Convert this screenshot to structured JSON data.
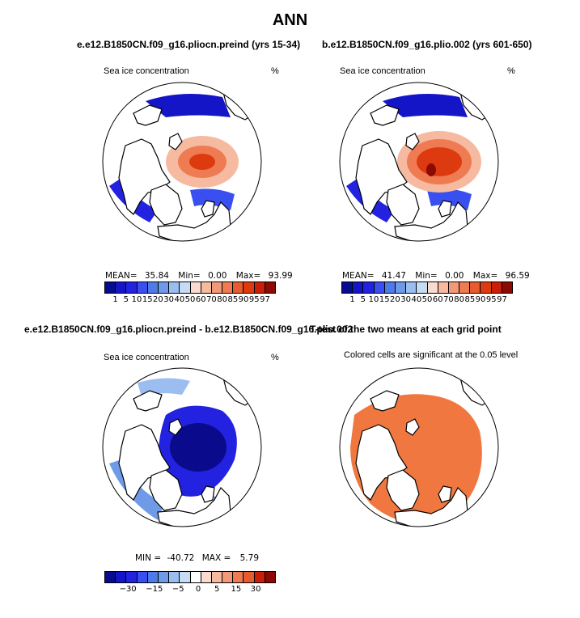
{
  "title": "ANN",
  "chart_data": [
    {
      "type": "heatmap",
      "projection": "north polar stereographic",
      "title": "e.e12.B1850CN.f09_g16.pliocn.preind (yrs 15-34)",
      "subtitle_left": "Sea ice concentration",
      "subtitle_right": "%",
      "stats": {
        "mean_label": "MEAN=",
        "mean": "35.84",
        "min_label": "Min=",
        "min": "0.00",
        "max_label": "Max=",
        "max": "93.99"
      },
      "colorbar_labels": [
        "1",
        "5",
        "10",
        "15",
        "20",
        "30",
        "40",
        "50",
        "60",
        "70",
        "80",
        "85",
        "90",
        "95",
        "97"
      ],
      "colors": [
        "#0a0a8c",
        "#1515c8",
        "#2222e0",
        "#3a4ff0",
        "#4f7be8",
        "#6f9ae8",
        "#9bbdf0",
        "#c6dcf5",
        "#f9dccd",
        "#f6baa0",
        "#f29a78",
        "#ee7b52",
        "#e85a30",
        "#de3a10",
        "#c82008",
        "#8c0a04"
      ]
    },
    {
      "type": "heatmap",
      "projection": "north polar stereographic",
      "title": "b.e12.B1850CN.f09_g16.plio.002 (yrs 601-650)",
      "subtitle_left": "Sea ice concentration",
      "subtitle_right": "%",
      "stats": {
        "mean_label": "MEAN=",
        "mean": "41.47",
        "min_label": "Min=",
        "min": "0.00",
        "max_label": "Max=",
        "max": "96.59"
      },
      "colorbar_labels": [
        "1",
        "5",
        "10",
        "15",
        "20",
        "30",
        "40",
        "50",
        "60",
        "70",
        "80",
        "85",
        "90",
        "95",
        "97"
      ],
      "colors": [
        "#0a0a8c",
        "#1515c8",
        "#2222e0",
        "#3a4ff0",
        "#4f7be8",
        "#6f9ae8",
        "#9bbdf0",
        "#c6dcf5",
        "#f9dccd",
        "#f6baa0",
        "#f29a78",
        "#ee7b52",
        "#e85a30",
        "#de3a10",
        "#c82008",
        "#8c0a04"
      ]
    },
    {
      "type": "heatmap",
      "projection": "north polar stereographic",
      "title": "e.e12.B1850CN.f09_g16.pliocn.preind - b.e12.B1850CN.f09_g16.plio.002",
      "subtitle_left": "Sea ice concentration",
      "subtitle_right": "%",
      "stats": {
        "min_label": "MIN =",
        "min": "-40.72",
        "max_label": "MAX =",
        "max": "5.79"
      },
      "colorbar_labels": [
        "",
        "−30",
        "",
        "−15",
        "",
        "−5",
        "",
        "0",
        "",
        "5",
        "",
        "15",
        "",
        "30",
        ""
      ],
      "colors": [
        "#0a0a8c",
        "#1515c8",
        "#2222e0",
        "#3a4ff0",
        "#4f7be8",
        "#6f9ae8",
        "#9bbdf0",
        "#c6dcf5",
        "#ffffff",
        "#f9dccd",
        "#f6baa0",
        "#f29a78",
        "#ee7b52",
        "#e85a30",
        "#c82008",
        "#8c0a04"
      ]
    },
    {
      "type": "heatmap",
      "projection": "north polar stereographic",
      "title": "T-test of the two means at each grid point",
      "subtitle_left": "Colored cells are significant at the 0.05 level",
      "significant_color": "#f07840"
    }
  ]
}
